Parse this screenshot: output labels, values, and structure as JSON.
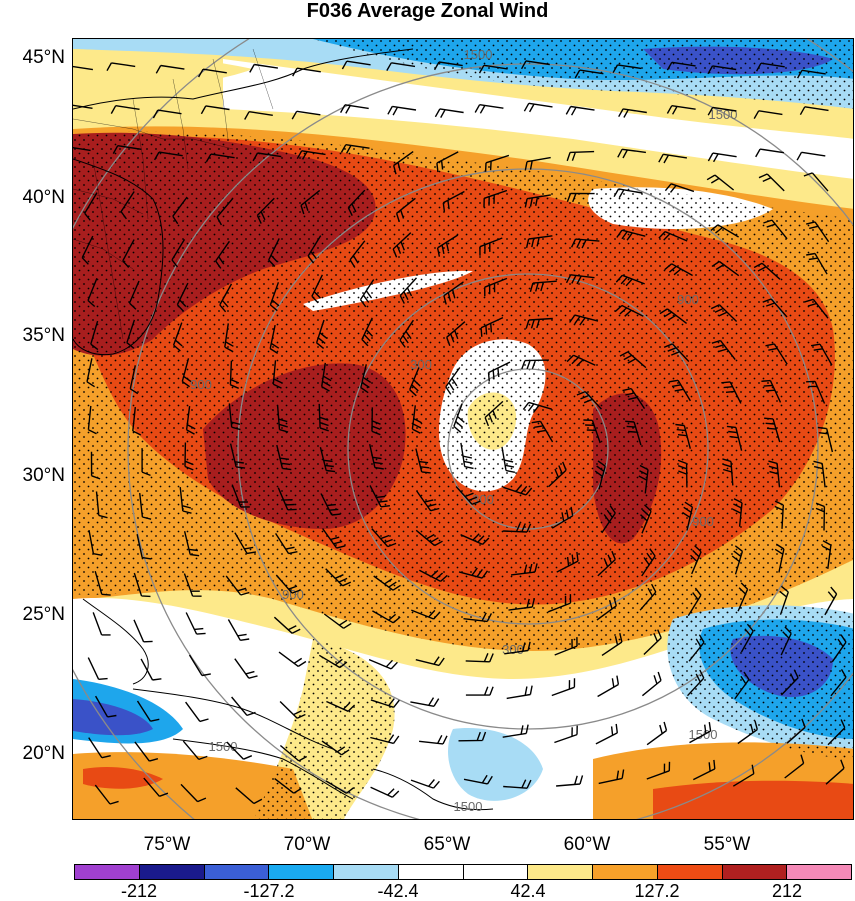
{
  "title": "F036 Average Zonal Wind",
  "lat_labels": [
    "45°N",
    "40°N",
    "35°N",
    "30°N",
    "25°N",
    "20°N"
  ],
  "lon_labels": [
    "75°W",
    "70°W",
    "65°W",
    "60°W",
    "55°W"
  ],
  "colorbar": {
    "colors": [
      "#a040d0",
      "#1a1a8c",
      "#3b5fd6",
      "#1aaaf0",
      "#a8dcf5",
      "#ffffff",
      "#ffffff",
      "#fde98a",
      "#f7a12a",
      "#ee4c14",
      "#b02020",
      "#f58ab8"
    ],
    "labels": [
      "-212",
      "-127.2",
      "-42.4",
      "42.4",
      "127.2",
      "212"
    ]
  },
  "contour_labels": [
    "1500",
    "1500",
    "900",
    "900",
    "300",
    "300",
    "900",
    "900",
    "1500",
    "1500",
    "300",
    "1500"
  ],
  "colors": {
    "dark_red": "#a81e1e",
    "red_orange": "#e84a14",
    "orange": "#f5a02a",
    "light_yellow": "#fde98a",
    "light_blue": "#a8dcf5",
    "blue": "#1ea6ec",
    "dark_blue": "#3a52c8"
  }
}
